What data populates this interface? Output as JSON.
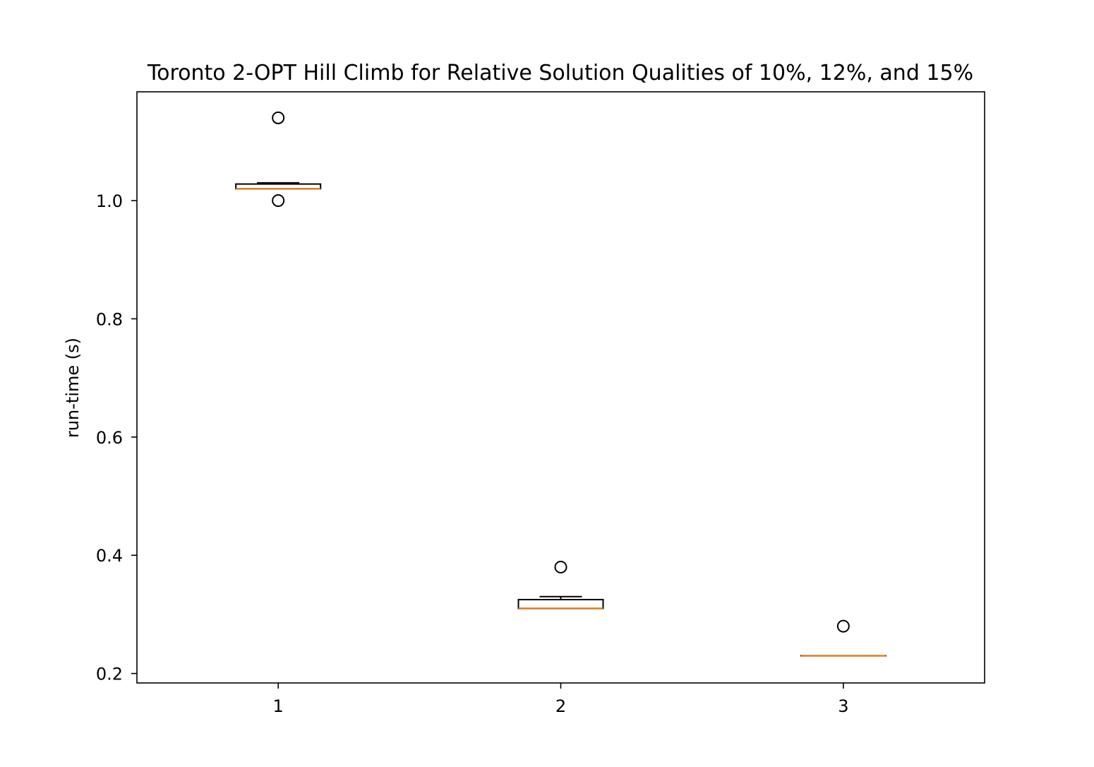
{
  "chart_data": {
    "type": "boxplot",
    "title": "Toronto 2-OPT Hill Climb for Relative Solution Qualities of 10%, 12%, and 15%",
    "xlabel": "",
    "ylabel": "run-time (s)",
    "categories": [
      "1",
      "2",
      "3"
    ],
    "xlim": [
      0.5,
      3.5
    ],
    "ylim": [
      0.184,
      1.184
    ],
    "yticks": [
      0.2,
      0.4,
      0.6,
      0.8,
      1.0
    ],
    "ytick_labels": [
      "0.2",
      "0.4",
      "0.6",
      "0.8",
      "1.0"
    ],
    "grid": false,
    "boxes": [
      {
        "category": "1",
        "whisker_low": 1.02,
        "q1": 1.02,
        "median": 1.02,
        "q3": 1.028,
        "whisker_high": 1.03,
        "outliers": [
          1.14,
          1.0
        ]
      },
      {
        "category": "2",
        "whisker_low": 0.31,
        "q1": 0.31,
        "median": 0.31,
        "q3": 0.325,
        "whisker_high": 0.33,
        "outliers": [
          0.38
        ]
      },
      {
        "category": "3",
        "whisker_low": 0.23,
        "q1": 0.23,
        "median": 0.23,
        "q3": 0.23,
        "whisker_high": 0.23,
        "outliers": [
          0.28
        ]
      }
    ],
    "colors": {
      "box": "#000000",
      "median": "#e07b1f",
      "outlier": "#000000"
    }
  }
}
